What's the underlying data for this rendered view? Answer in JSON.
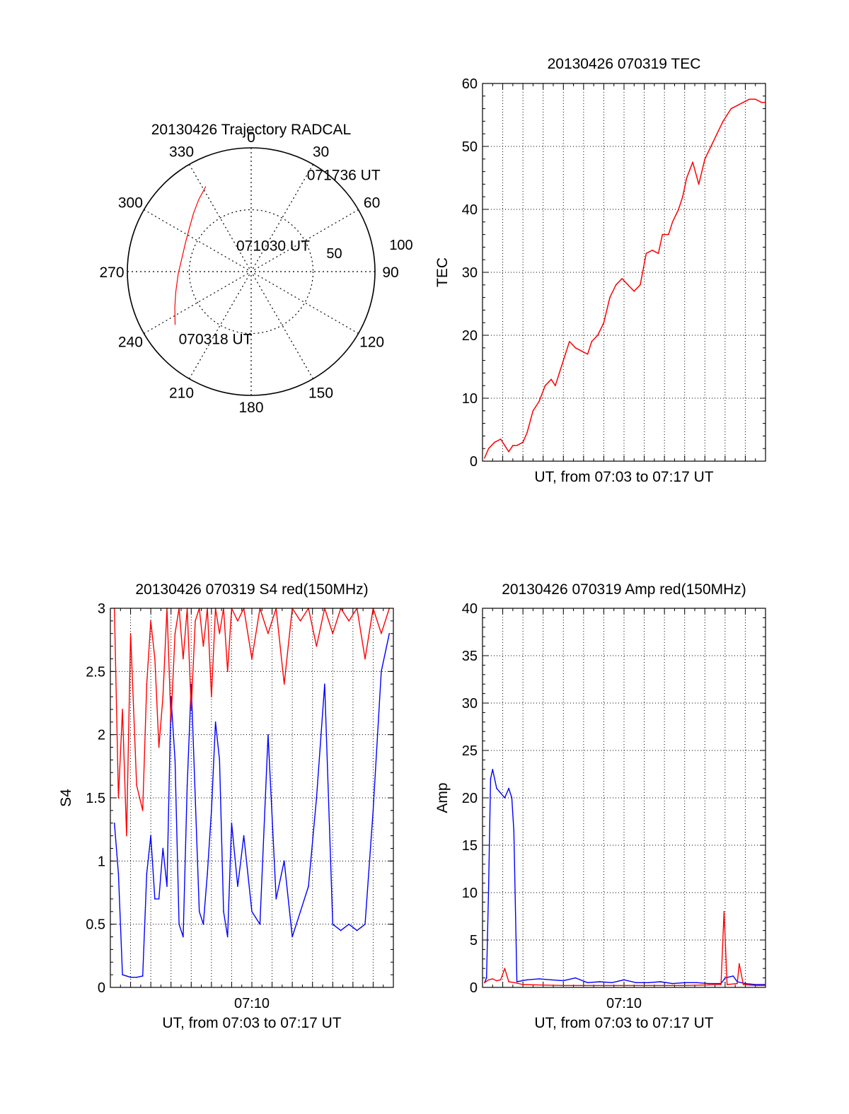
{
  "colors": {
    "red": "#ff0000",
    "blue": "#0000ff",
    "axis": "#000000",
    "grid": "#000000"
  },
  "chart_data": [
    {
      "id": "trajectory",
      "type": "polar",
      "title": "20130426 Trajectory RADCAL",
      "angle_labels": [
        "0",
        "30",
        "60",
        "90",
        "120",
        "150",
        "180",
        "210",
        "240",
        "270",
        "300",
        "330"
      ],
      "radial_labels": [
        "50",
        "100"
      ],
      "radial_max": 100,
      "track_color": "red",
      "track": [
        {
          "az": 235,
          "zen": 75
        },
        {
          "az": 245,
          "zen": 68
        },
        {
          "az": 255,
          "zen": 63
        },
        {
          "az": 268,
          "zen": 59
        },
        {
          "az": 281,
          "zen": 57
        },
        {
          "az": 294,
          "zen": 58
        },
        {
          "az": 305,
          "zen": 61
        },
        {
          "az": 315,
          "zen": 66
        },
        {
          "az": 324,
          "zen": 72
        },
        {
          "az": 332,
          "zen": 78
        }
      ],
      "annotations": [
        {
          "text": "070318 UT",
          "az": 227,
          "zen": 80
        },
        {
          "text": "071030 UT",
          "az": 330,
          "zen": 24
        },
        {
          "text": "071736 UT",
          "az": 30,
          "zen": 90
        }
      ]
    },
    {
      "id": "tec",
      "type": "line",
      "title": "20130426 070319 TEC",
      "xlabel": "UT, from 07:03 to 07:17 UT",
      "ylabel": "TEC",
      "xlim": [
        0,
        14
      ],
      "ylim": [
        0,
        60
      ],
      "yticks": [
        0,
        10,
        20,
        30,
        40,
        50,
        60
      ],
      "grid": true,
      "series": [
        {
          "color": "red",
          "x": [
            0.1,
            0.3,
            0.6,
            0.9,
            1.1,
            1.3,
            1.5,
            1.7,
            2.0,
            2.2,
            2.5,
            2.8,
            3.1,
            3.4,
            3.6,
            3.8,
            4.1,
            4.3,
            4.6,
            4.9,
            5.2,
            5.4,
            5.7,
            6.0,
            6.3,
            6.6,
            6.9,
            7.2,
            7.5,
            7.8,
            8.1,
            8.4,
            8.7,
            8.9,
            9.2,
            9.4,
            9.7,
            9.9,
            10.1,
            10.4,
            10.7,
            11.0,
            11.3,
            11.6,
            11.9,
            12.1,
            12.3,
            12.6,
            12.9,
            13.2,
            13.5,
            13.8,
            13.95
          ],
          "y": [
            0.5,
            2,
            3,
            3.5,
            2.5,
            1.5,
            2.5,
            2.5,
            3,
            4.5,
            8,
            9.5,
            12,
            13,
            12,
            14,
            17,
            19,
            18,
            17.5,
            17,
            19,
            20,
            22,
            26,
            28,
            29,
            28,
            27,
            28,
            33,
            33.5,
            33,
            36,
            36,
            38,
            40,
            42,
            45,
            47.5,
            44,
            48,
            50,
            52,
            54,
            55,
            56,
            56.5,
            57,
            57.5,
            57.5,
            57,
            57
          ]
        }
      ]
    },
    {
      "id": "s4",
      "type": "line",
      "title": "20130426 070319 S4 red(150MHz)",
      "xlabel": "UT, from 07:03 to 07:17 UT",
      "ylabel": "S4",
      "xlim": [
        0,
        14
      ],
      "ylim": [
        0,
        3
      ],
      "yticks": [
        0,
        0.5,
        1,
        1.5,
        2,
        2.5,
        3
      ],
      "ytick_labels": [
        "0",
        "0.5",
        "1",
        "1.5",
        "2",
        "2.5",
        "3"
      ],
      "xticks": [
        7
      ],
      "xtick_labels": [
        "07:10"
      ],
      "grid": true,
      "series": [
        {
          "color": "blue",
          "x": [
            0.2,
            0.4,
            0.6,
            0.8,
            1.0,
            1.3,
            1.6,
            1.8,
            2.0,
            2.2,
            2.4,
            2.6,
            2.8,
            3.0,
            3.2,
            3.4,
            3.6,
            3.8,
            4.0,
            4.2,
            4.4,
            4.6,
            4.8,
            5.0,
            5.2,
            5.4,
            5.6,
            5.8,
            6.0,
            6.3,
            6.6,
            7.0,
            7.4,
            7.8,
            8.2,
            8.6,
            9.0,
            9.4,
            9.8,
            10.2,
            10.6,
            11.0,
            11.4,
            11.8,
            12.2,
            12.6,
            13.0,
            13.4,
            13.8
          ],
          "y": [
            1.3,
            0.9,
            0.1,
            0.09,
            0.08,
            0.08,
            0.09,
            0.9,
            1.2,
            0.7,
            0.7,
            1.1,
            0.8,
            2.3,
            1.8,
            0.5,
            0.4,
            1.6,
            2.4,
            1.5,
            0.6,
            0.5,
            0.9,
            1.4,
            2.1,
            1.8,
            0.6,
            0.4,
            1.3,
            0.8,
            1.2,
            0.6,
            0.5,
            2.0,
            0.7,
            1.0,
            0.4,
            0.6,
            0.8,
            1.5,
            2.4,
            0.5,
            0.45,
            0.5,
            0.45,
            0.5,
            1.4,
            2.5,
            2.8
          ]
        },
        {
          "color": "red",
          "x": [
            0.2,
            0.4,
            0.6,
            0.8,
            1.0,
            1.3,
            1.6,
            1.8,
            2.0,
            2.2,
            2.4,
            2.6,
            2.8,
            3.0,
            3.2,
            3.4,
            3.6,
            3.8,
            4.0,
            4.2,
            4.4,
            4.6,
            4.8,
            5.0,
            5.2,
            5.4,
            5.6,
            5.8,
            6.0,
            6.3,
            6.6,
            7.0,
            7.4,
            7.8,
            8.2,
            8.6,
            9.0,
            9.4,
            9.8,
            10.2,
            10.6,
            11.0,
            11.4,
            11.8,
            12.2,
            12.6,
            13.0,
            13.4,
            13.8
          ],
          "y": [
            3.0,
            1.5,
            2.2,
            1.2,
            2.8,
            1.6,
            1.4,
            2.4,
            2.9,
            2.6,
            1.9,
            2.3,
            3.0,
            2.1,
            2.8,
            3.0,
            2.6,
            3.0,
            2.2,
            2.9,
            3.0,
            2.7,
            3.0,
            2.3,
            3.0,
            2.8,
            3.0,
            2.5,
            3.0,
            2.9,
            3.0,
            2.6,
            3.0,
            2.8,
            3.0,
            2.4,
            3.0,
            2.9,
            3.0,
            2.7,
            3.0,
            2.8,
            3.0,
            2.9,
            3.0,
            2.6,
            3.0,
            2.8,
            3.0
          ]
        }
      ]
    },
    {
      "id": "amp",
      "type": "line",
      "title": "20130426 070319 Amp red(150MHz)",
      "xlabel": "UT, from 07:03 to 07:17 UT",
      "ylabel": "Amp",
      "xlim": [
        0,
        14
      ],
      "ylim": [
        0,
        40
      ],
      "yticks": [
        0,
        5,
        10,
        15,
        20,
        25,
        30,
        35,
        40
      ],
      "xticks": [
        7
      ],
      "xtick_labels": [
        "07:10"
      ],
      "grid": true,
      "series": [
        {
          "color": "blue",
          "x": [
            0.1,
            0.2,
            0.3,
            0.4,
            0.5,
            0.7,
            0.9,
            1.1,
            1.3,
            1.45,
            1.55,
            1.7,
            2.2,
            2.8,
            3.4,
            4.0,
            4.6,
            5.2,
            5.8,
            6.4,
            7.0,
            7.6,
            8.2,
            8.8,
            9.4,
            10.0,
            10.6,
            11.2,
            11.8,
            12.0,
            12.4,
            12.6,
            13.0,
            13.5,
            13.95
          ],
          "y": [
            0.5,
            1.0,
            10.5,
            22.0,
            23.0,
            21.0,
            20.5,
            20.0,
            21.0,
            20.0,
            16.5,
            0.6,
            0.8,
            0.9,
            0.8,
            0.7,
            1.0,
            0.5,
            0.6,
            0.5,
            0.8,
            0.5,
            0.5,
            0.6,
            0.4,
            0.5,
            0.5,
            0.4,
            0.4,
            1.0,
            1.2,
            0.6,
            0.4,
            0.3,
            0.3
          ]
        },
        {
          "color": "red",
          "x": [
            0.1,
            0.3,
            0.5,
            0.7,
            0.9,
            1.1,
            1.3,
            1.6,
            2.0,
            4.0,
            6.0,
            8.0,
            10.0,
            11.8,
            11.95,
            12.1,
            12.6,
            12.7,
            12.9,
            13.5,
            13.95
          ],
          "y": [
            0.5,
            0.8,
            0.9,
            0.7,
            0.8,
            2.0,
            0.6,
            0.5,
            0.3,
            0.2,
            0.2,
            0.2,
            0.2,
            0.3,
            8.0,
            0.3,
            0.4,
            2.5,
            0.3,
            0.2,
            0.2
          ]
        }
      ]
    }
  ]
}
